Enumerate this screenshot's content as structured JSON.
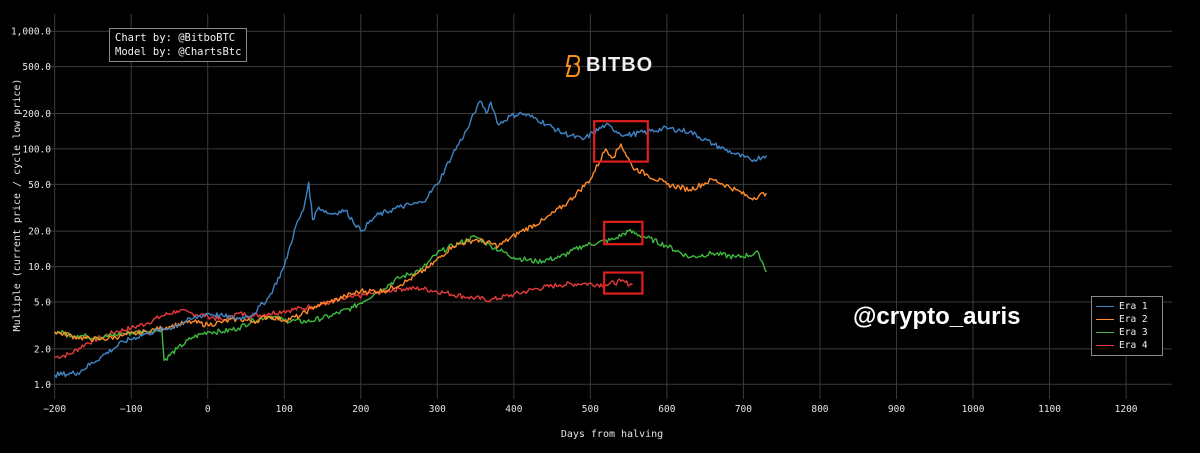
{
  "credits": {
    "line1": "Chart by: @BitboBTC",
    "line2": "Model by: @ChartsBtc"
  },
  "logo": {
    "text": "BITBO",
    "icon": "bitbo-b-icon",
    "icon_color": "#f7931a"
  },
  "watermark": "@crypto_auris",
  "highlight_color": "#e01e1e",
  "chart_data": {
    "type": "line",
    "title": "",
    "xlabel": "Days from halving",
    "ylabel": "Multiple (current price / cycle low price)",
    "xlim": [
      -210,
      1260
    ],
    "ylim": [
      0.75,
      1400
    ],
    "yscale": "log",
    "grid": true,
    "legend_position": "bottom-right",
    "x_ticks": [
      -200,
      -100,
      0,
      100,
      200,
      300,
      400,
      500,
      600,
      700,
      800,
      900,
      1000,
      1100,
      1200
    ],
    "x_tick_labels": [
      "−200",
      "−100",
      "0",
      "100",
      "200",
      "300",
      "400",
      "500",
      "600",
      "700",
      "800",
      "900",
      "1000",
      "1100",
      "1200"
    ],
    "y_ticks": [
      1,
      2,
      5,
      10,
      20,
      50,
      100,
      200,
      500,
      1000
    ],
    "y_tick_labels": [
      "1.0",
      "2.0",
      "5.0",
      "10.0",
      "20.0",
      "50.0",
      "100.0",
      "200.0",
      "500.0",
      "1,000.0"
    ],
    "series": [
      {
        "name": "Era 1",
        "color": "#3f84c4",
        "x": [
          -200,
          -170,
          -140,
          -110,
          -80,
          -50,
          -20,
          0,
          20,
          40,
          60,
          80,
          100,
          115,
          125,
          132,
          137,
          145,
          160,
          180,
          200,
          220,
          250,
          280,
          300,
          320,
          340,
          352,
          358,
          364,
          370,
          380,
          395,
          410,
          430,
          460,
          490,
          520,
          545,
          575,
          600,
          630,
          660,
          690,
          710,
          730
        ],
        "y": [
          1.2,
          1.25,
          1.7,
          2.3,
          2.7,
          3.0,
          3.6,
          4.0,
          3.8,
          3.6,
          4.0,
          5.5,
          10,
          22,
          30,
          52,
          25,
          32,
          28,
          30,
          20,
          27,
          32,
          35,
          50,
          90,
          150,
          230,
          250,
          200,
          250,
          160,
          190,
          200,
          180,
          140,
          120,
          160,
          130,
          140,
          150,
          140,
          110,
          90,
          80,
          88
        ]
      },
      {
        "name": "Era 2",
        "color": "#ff8a2a",
        "x": [
          -200,
          -170,
          -140,
          -110,
          -80,
          -50,
          -20,
          0,
          20,
          40,
          60,
          80,
          100,
          120,
          140,
          160,
          180,
          200,
          230,
          260,
          290,
          320,
          350,
          380,
          410,
          440,
          470,
          500,
          520,
          530,
          540,
          555,
          575,
          600,
          630,
          660,
          690,
          710,
          730
        ],
        "y": [
          2.8,
          2.5,
          2.4,
          2.6,
          2.8,
          3.1,
          3.4,
          3.2,
          3.4,
          3.6,
          3.4,
          3.8,
          3.5,
          3.8,
          4.6,
          5.0,
          5.6,
          6.2,
          6.2,
          7.5,
          10,
          15,
          17,
          15,
          20,
          25,
          35,
          55,
          100,
          85,
          110,
          70,
          60,
          50,
          45,
          55,
          45,
          38,
          42
        ]
      },
      {
        "name": "Era 3",
        "color": "#3fb83f",
        "x": [
          -200,
          -170,
          -140,
          -110,
          -80,
          -60,
          -57,
          -40,
          -20,
          0,
          20,
          40,
          60,
          80,
          100,
          130,
          160,
          190,
          220,
          250,
          280,
          300,
          320,
          350,
          370,
          400,
          430,
          460,
          490,
          510,
          530,
          550,
          570,
          600,
          630,
          660,
          690,
          720,
          730
        ],
        "y": [
          2.8,
          2.6,
          2.5,
          2.7,
          2.8,
          3.0,
          1.6,
          2.0,
          2.5,
          2.8,
          2.8,
          3.0,
          3.5,
          3.8,
          3.5,
          3.4,
          3.8,
          4.5,
          6.0,
          8.0,
          9.5,
          13,
          15,
          18,
          15,
          12,
          11,
          12,
          15,
          16,
          17,
          20,
          18,
          15,
          12,
          13,
          12,
          13,
          9
        ]
      },
      {
        "name": "Era 4",
        "color": "#e63a3a",
        "x": [
          -200,
          -180,
          -160,
          -140,
          -120,
          -100,
          -80,
          -60,
          -40,
          -20,
          0,
          20,
          40,
          60,
          80,
          100,
          130,
          160,
          190,
          220,
          250,
          280,
          310,
          340,
          370,
          400,
          430,
          460,
          490,
          520,
          540,
          555
        ],
        "y": [
          1.7,
          1.8,
          2.2,
          2.5,
          2.8,
          3.0,
          3.3,
          3.8,
          4.2,
          4.0,
          3.8,
          3.5,
          4.0,
          3.8,
          4.0,
          4.2,
          4.5,
          5.0,
          5.5,
          6.0,
          6.5,
          6.5,
          6.0,
          5.5,
          5.2,
          5.8,
          6.5,
          7.0,
          7.2,
          7.0,
          7.5,
          7.0
        ]
      }
    ],
    "highlights": [
      {
        "x": [
          505,
          575
        ],
        "y": [
          78,
          172
        ]
      },
      {
        "x": [
          518,
          568
        ],
        "y": [
          15.5,
          24
        ]
      },
      {
        "x": [
          518,
          568
        ],
        "y": [
          5.9,
          8.9
        ]
      }
    ]
  }
}
